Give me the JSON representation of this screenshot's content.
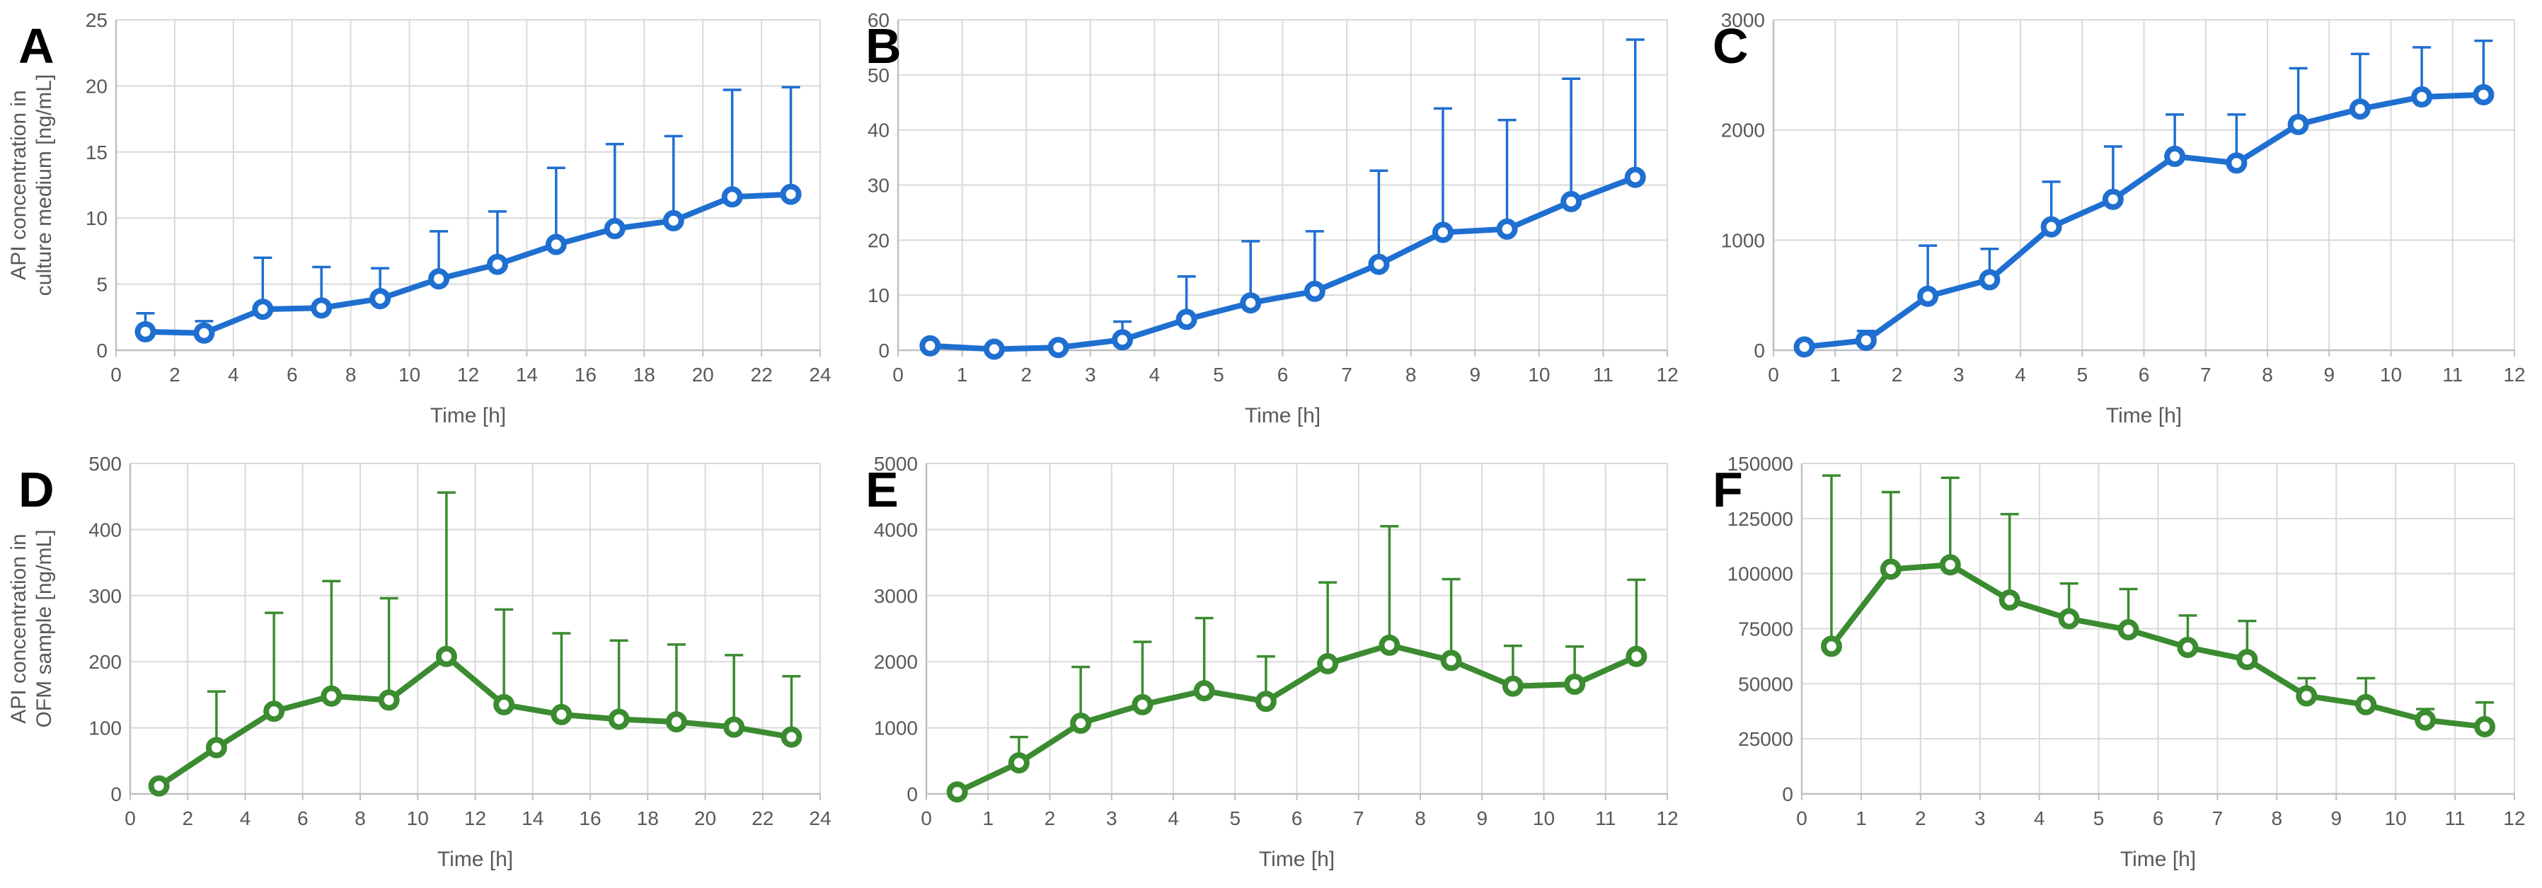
{
  "figure": {
    "description": "Six-panel scientific figure of API concentration time profiles with positive error bars",
    "panel_labels": [
      "A",
      "B",
      "C",
      "D",
      "E",
      "F"
    ]
  },
  "colors": {
    "blue": "#1F6FD0",
    "green": "#3B8B30",
    "grid": "#D9D9D9",
    "axis": "#BFBFBF",
    "text": "#595959",
    "panel_label": "#000000",
    "background": "#FFFFFF"
  },
  "chart_data": [
    {
      "type": "line",
      "panel_label": "A",
      "series_color_key": "blue",
      "xlabel": "Time [h]",
      "ylabel_lines": [
        "API concentration in",
        "culture medium [ng/mL]"
      ],
      "xlim": [
        0,
        24
      ],
      "xstep": 2,
      "ylim": [
        0,
        25
      ],
      "ystep": 5,
      "x": [
        1,
        3,
        5,
        7,
        9,
        11,
        13,
        15,
        17,
        19,
        21,
        23
      ],
      "values": [
        1.4,
        1.3,
        3.1,
        3.2,
        3.9,
        5.4,
        6.5,
        8.0,
        9.2,
        9.8,
        11.6,
        11.8
      ],
      "error_up": [
        1.4,
        0.9,
        3.9,
        3.1,
        2.3,
        3.6,
        4.0,
        5.8,
        6.4,
        6.4,
        8.1,
        8.1
      ],
      "grid": true,
      "legend": null
    },
    {
      "type": "line",
      "panel_label": "B",
      "series_color_key": "blue",
      "xlabel": "Time [h]",
      "ylabel_lines": null,
      "xlim": [
        0,
        12
      ],
      "xstep": 1,
      "ylim": [
        0,
        60
      ],
      "ystep": 10,
      "x": [
        0.5,
        1.5,
        2.5,
        3.5,
        4.5,
        5.5,
        6.5,
        7.5,
        8.5,
        9.5,
        10.5,
        11.5
      ],
      "values": [
        0.8,
        0.2,
        0.5,
        1.9,
        5.6,
        8.6,
        10.7,
        15.6,
        21.4,
        22.0,
        27.0,
        31.4
      ],
      "error_up": [
        0.4,
        0.2,
        0.4,
        3.3,
        7.8,
        11.2,
        10.9,
        17.0,
        22.5,
        19.8,
        22.3,
        25.0
      ],
      "grid": true,
      "legend": null
    },
    {
      "type": "line",
      "panel_label": "C",
      "series_color_key": "blue",
      "xlabel": "Time [h]",
      "ylabel_lines": null,
      "xlim": [
        0,
        12
      ],
      "xstep": 1,
      "ylim": [
        0,
        3000
      ],
      "ystep": 1000,
      "x": [
        0.5,
        1.5,
        2.5,
        3.5,
        4.5,
        5.5,
        6.5,
        7.5,
        8.5,
        9.5,
        10.5,
        11.5
      ],
      "values": [
        30,
        90,
        490,
        640,
        1120,
        1370,
        1760,
        1700,
        2050,
        2190,
        2300,
        2320
      ],
      "error_up": [
        25,
        85,
        460,
        280,
        410,
        480,
        380,
        440,
        510,
        500,
        450,
        490
      ],
      "grid": true,
      "legend": null
    },
    {
      "type": "line",
      "panel_label": "D",
      "series_color_key": "green",
      "xlabel": "Time [h]",
      "ylabel_lines": [
        "API concentration in",
        "OFM sample [ng/mL]"
      ],
      "xlim": [
        0,
        24
      ],
      "xstep": 2,
      "ylim": [
        0,
        500
      ],
      "ystep": 100,
      "x": [
        1,
        3,
        5,
        7,
        9,
        11,
        13,
        15,
        17,
        19,
        21,
        23
      ],
      "values": [
        12,
        70,
        125,
        148,
        142,
        208,
        135,
        120,
        113,
        109,
        101,
        86
      ],
      "error_up": [
        6,
        85,
        149,
        174,
        154,
        248,
        144,
        123,
        119,
        117,
        109,
        92
      ],
      "grid": true,
      "legend": null
    },
    {
      "type": "line",
      "panel_label": "E",
      "series_color_key": "green",
      "xlabel": "Time [h]",
      "ylabel_lines": null,
      "xlim": [
        0,
        12
      ],
      "xstep": 1,
      "ylim": [
        0,
        5000
      ],
      "ystep": 1000,
      "x": [
        0.5,
        1.5,
        2.5,
        3.5,
        4.5,
        5.5,
        6.5,
        7.5,
        8.5,
        9.5,
        10.5,
        11.5
      ],
      "values": [
        30,
        470,
        1070,
        1350,
        1560,
        1400,
        1970,
        2250,
        2020,
        1630,
        1660,
        2080
      ],
      "error_up": [
        30,
        390,
        850,
        950,
        1100,
        680,
        1230,
        1800,
        1230,
        610,
        570,
        1160
      ],
      "grid": true,
      "legend": null
    },
    {
      "type": "line",
      "panel_label": "F",
      "series_color_key": "green",
      "xlabel": "Time [h]",
      "ylabel_lines": null,
      "xlim": [
        0,
        12
      ],
      "xstep": 1,
      "ylim": [
        0,
        150000
      ],
      "ystep": 25000,
      "x": [
        0.5,
        1.5,
        2.5,
        3.5,
        4.5,
        5.5,
        6.5,
        7.5,
        8.5,
        9.5,
        10.5,
        11.5
      ],
      "values": [
        67000,
        102000,
        104000,
        88000,
        79500,
        74500,
        66500,
        61000,
        44500,
        40500,
        33500,
        30500
      ],
      "error_up": [
        77500,
        35000,
        39500,
        39000,
        16000,
        18500,
        14500,
        17500,
        8000,
        12000,
        5000,
        11000
      ],
      "grid": true,
      "legend": null
    }
  ]
}
